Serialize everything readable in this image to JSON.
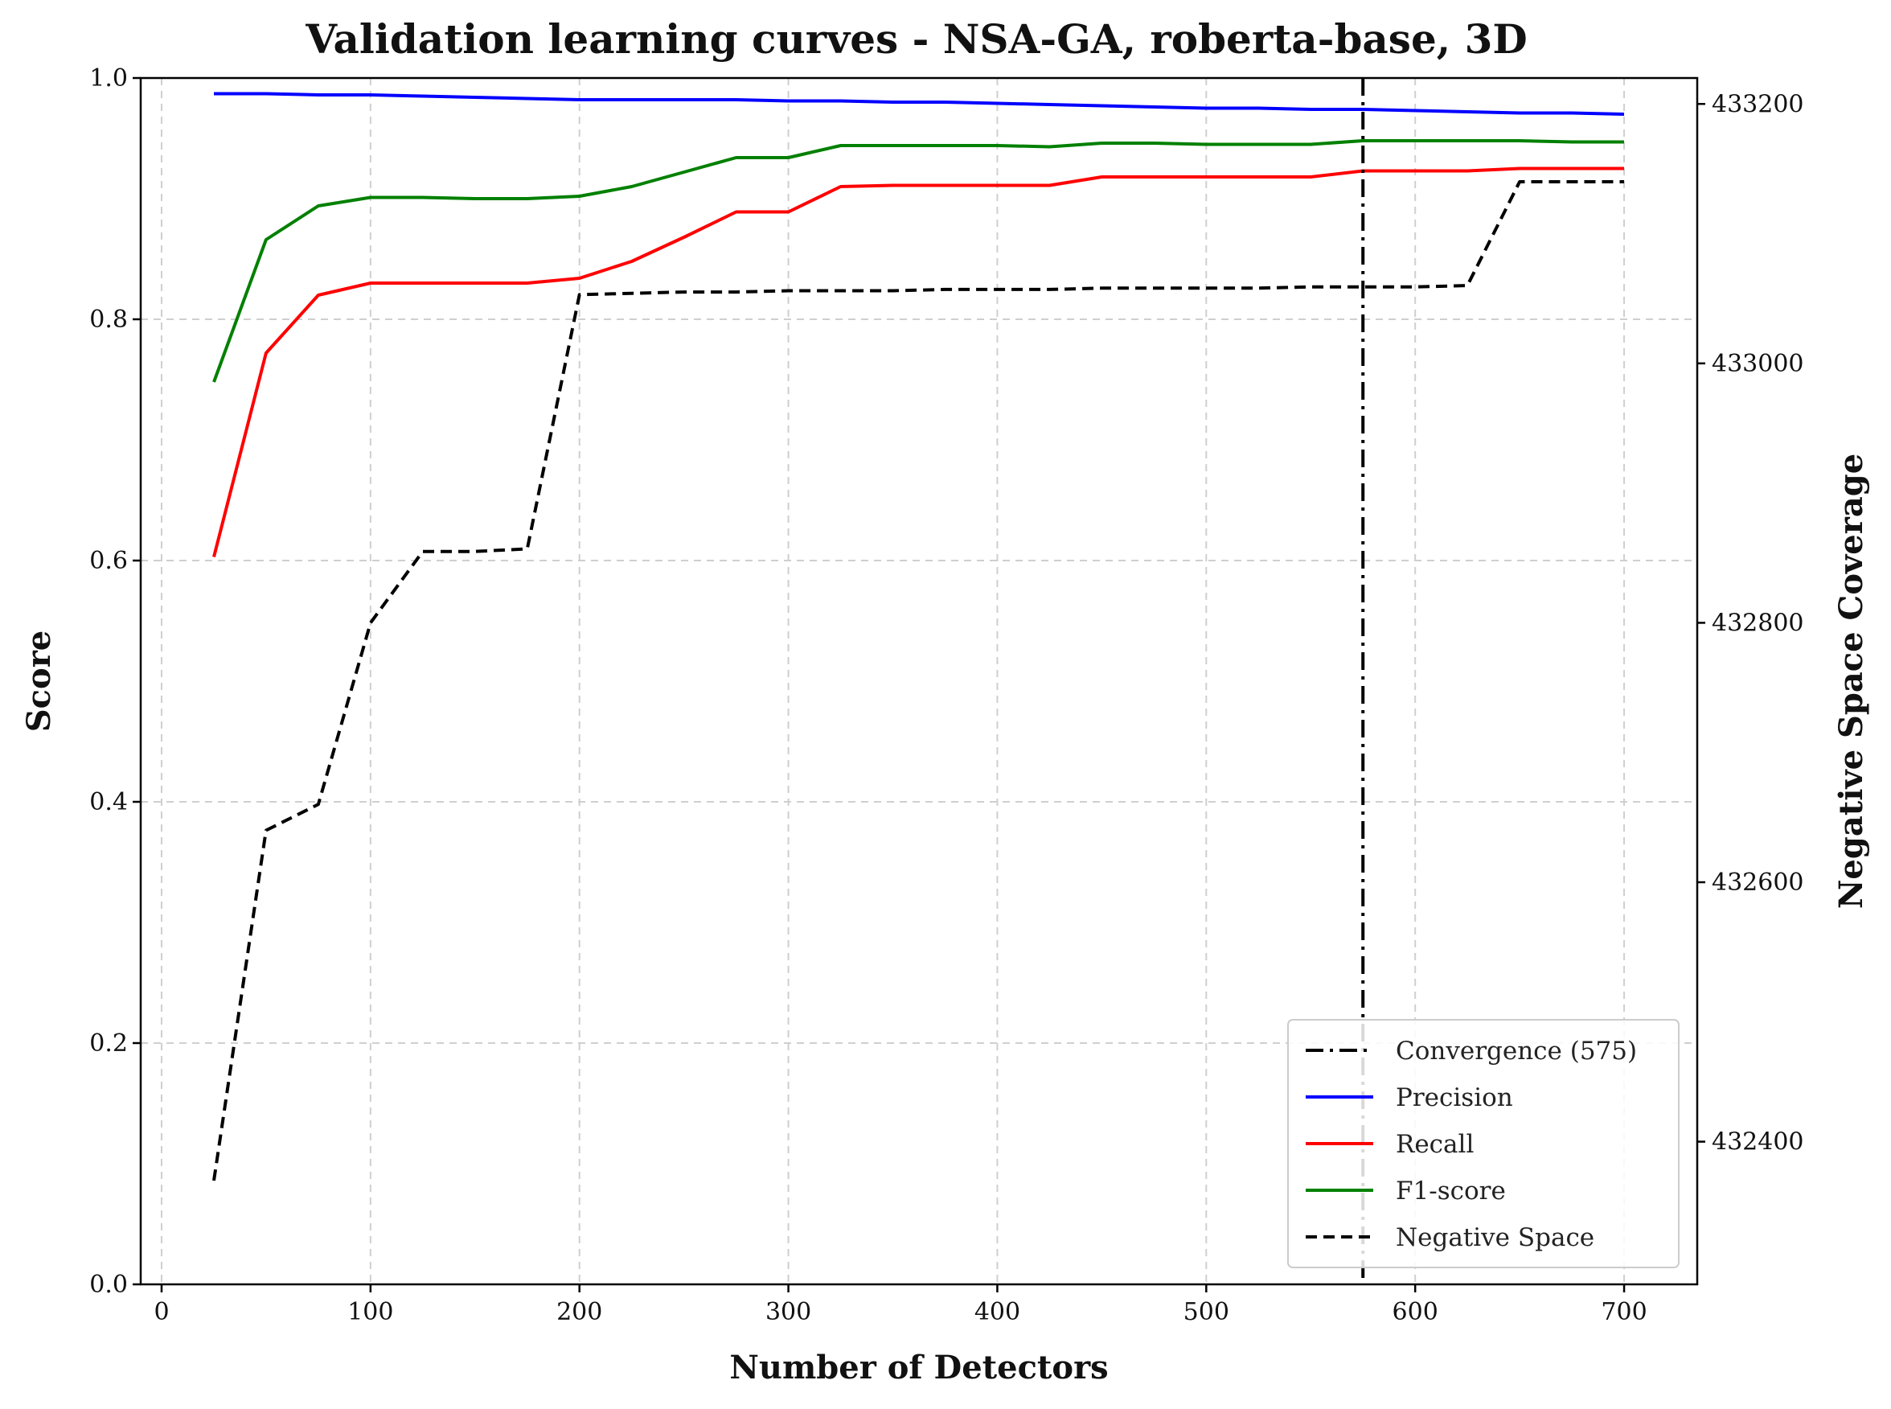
{
  "chart_data": {
    "type": "line",
    "title": "Validation learning curves - NSA-GA, roberta-base, 3D",
    "xlabel": "Number of Detectors",
    "ylabel": "Score",
    "y2label": "Negative Space Coverage",
    "xlim": [
      -10,
      735
    ],
    "ylim": [
      0,
      1
    ],
    "y2lim": [
      432290,
      433220
    ],
    "xticks": [
      "0",
      "100",
      "200",
      "300",
      "400",
      "500",
      "600",
      "700"
    ],
    "yticks": [
      "0.0",
      "0.2",
      "0.4",
      "0.6",
      "0.8",
      "1.0"
    ],
    "y2ticks": [
      "432400",
      "432600",
      "432800",
      "433000",
      "433200"
    ],
    "grid": true,
    "legend_position": "lower-right",
    "convergence": {
      "name": "Convergence (575)",
      "x": 575,
      "color": "#000000"
    },
    "x": [
      25,
      50,
      75,
      100,
      125,
      150,
      175,
      200,
      225,
      250,
      275,
      300,
      325,
      350,
      375,
      400,
      425,
      450,
      475,
      500,
      525,
      550,
      575,
      600,
      625,
      650,
      675,
      700
    ],
    "series": [
      {
        "name": "Precision",
        "color": "#0000ff",
        "axis": "left",
        "style": "solid",
        "values": [
          0.987,
          0.987,
          0.986,
          0.986,
          0.985,
          0.984,
          0.983,
          0.982,
          0.982,
          0.982,
          0.982,
          0.981,
          0.981,
          0.98,
          0.98,
          0.979,
          0.978,
          0.977,
          0.976,
          0.975,
          0.975,
          0.974,
          0.974,
          0.973,
          0.972,
          0.971,
          0.971,
          0.97
        ]
      },
      {
        "name": "Recall",
        "color": "#ff0000",
        "axis": "left",
        "style": "solid",
        "values": [
          0.603,
          0.772,
          0.82,
          0.83,
          0.83,
          0.83,
          0.83,
          0.834,
          0.848,
          0.868,
          0.889,
          0.889,
          0.91,
          0.911,
          0.911,
          0.911,
          0.911,
          0.918,
          0.918,
          0.918,
          0.918,
          0.918,
          0.923,
          0.923,
          0.923,
          0.925,
          0.925,
          0.925
        ]
      },
      {
        "name": "F1-score",
        "color": "#008000",
        "axis": "left",
        "style": "solid",
        "values": [
          0.748,
          0.866,
          0.894,
          0.901,
          0.901,
          0.9,
          0.9,
          0.902,
          0.91,
          0.922,
          0.934,
          0.934,
          0.944,
          0.944,
          0.944,
          0.944,
          0.943,
          0.946,
          0.946,
          0.945,
          0.945,
          0.945,
          0.948,
          0.948,
          0.948,
          0.948,
          0.947,
          0.947
        ]
      },
      {
        "name": "Negative Space",
        "color": "#000000",
        "axis": "right",
        "style": "dashed",
        "values": [
          432370,
          432640,
          432660,
          432800,
          432855,
          432855,
          432857,
          433053,
          433054,
          433055,
          433055,
          433056,
          433056,
          433056,
          433057,
          433057,
          433057,
          433058,
          433058,
          433058,
          433058,
          433059,
          433059,
          433059,
          433060,
          433140,
          433140,
          433140
        ]
      }
    ]
  }
}
